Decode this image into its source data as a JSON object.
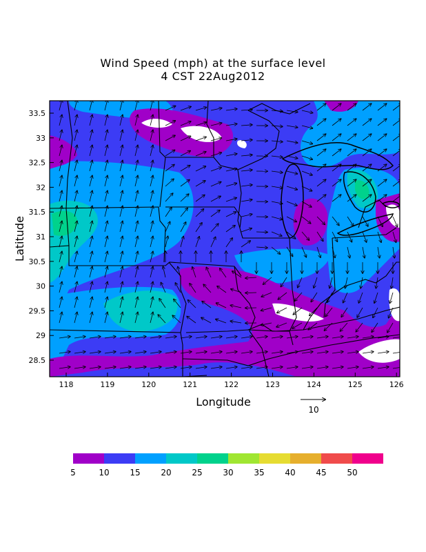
{
  "title_line1": "Wind Speed (mph) at the surface level",
  "title_line2": "4 CST 22Aug2012",
  "xlabel": "Longitude",
  "ylabel": "Latitude",
  "x_ticks": [
    "118",
    "119",
    "120",
    "121",
    "122",
    "123",
    "124",
    "125",
    "126"
  ],
  "y_ticks": [
    "33.5",
    "33",
    "32.5",
    "32",
    "31.5",
    "31",
    "30.5",
    "30",
    "29.5",
    "29",
    "28.5"
  ],
  "vector_reference": {
    "label": "10"
  },
  "colorbar": {
    "labels": [
      "5",
      "10",
      "15",
      "20",
      "25",
      "30",
      "35",
      "40",
      "45",
      "50"
    ],
    "colors": [
      "#a000c8",
      "#3c3cf5",
      "#00a0ff",
      "#00c8c8",
      "#00d28c",
      "#a0e632",
      "#e6dc32",
      "#e6af2d",
      "#f04b4b",
      "#f0008c"
    ]
  },
  "field_colors": {
    "level_5_10": "#a000c8",
    "level_10_15": "#3c3cf5",
    "level_15_20": "#00a0ff",
    "level_20_25": "#00c8c8",
    "level_25_30": "#00d28c",
    "below_5": "#ffffff"
  }
}
